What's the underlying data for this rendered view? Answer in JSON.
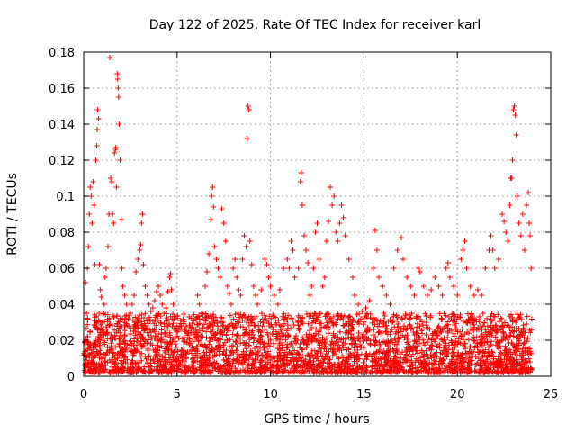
{
  "chart_data": {
    "type": "scatter",
    "title": "Day 122 of 2025, Rate Of TEC Index for receiver karl",
    "xlabel": "GPS time / hours",
    "ylabel": "ROTI / TECUs",
    "xlim": [
      0,
      25
    ],
    "ylim": [
      0,
      0.18
    ],
    "xticks": [
      0,
      5,
      10,
      15,
      20,
      25
    ],
    "xtick_labels": [
      "0",
      "5",
      "10",
      "15",
      "20",
      "25"
    ],
    "yticks": [
      0,
      0.02,
      0.04,
      0.06,
      0.08,
      0.1,
      0.12,
      0.14,
      0.16,
      0.18
    ],
    "ytick_labels": [
      "0",
      "0.02",
      "0.04",
      "0.06",
      "0.08",
      "0.1",
      "0.12",
      "0.14",
      "0.16",
      "0.18"
    ],
    "grid": true,
    "marker": "+",
    "color": "#ff0000",
    "series": [
      {
        "name": "ROTI",
        "points": [
          [
            0.1,
            0.052
          ],
          [
            0.15,
            0.035
          ],
          [
            0.2,
            0.06
          ],
          [
            0.25,
            0.072
          ],
          [
            0.3,
            0.09
          ],
          [
            0.35,
            0.105
          ],
          [
            0.4,
            0.1
          ],
          [
            0.45,
            0.085
          ],
          [
            0.5,
            0.108
          ],
          [
            0.55,
            0.095
          ],
          [
            0.6,
            0.062
          ],
          [
            0.65,
            0.12
          ],
          [
            0.7,
            0.128
          ],
          [
            0.72,
            0.137
          ],
          [
            0.75,
            0.148
          ],
          [
            0.8,
            0.143
          ],
          [
            0.85,
            0.062
          ],
          [
            0.9,
            0.048
          ],
          [
            0.95,
            0.044
          ],
          [
            1.0,
            0.03
          ],
          [
            1.05,
            0.026
          ],
          [
            1.1,
            0.04
          ],
          [
            1.15,
            0.055
          ],
          [
            1.2,
            0.06
          ],
          [
            1.3,
            0.072
          ],
          [
            1.35,
            0.09
          ],
          [
            1.4,
            0.177
          ],
          [
            1.45,
            0.11
          ],
          [
            1.5,
            0.108
          ],
          [
            1.55,
            0.09
          ],
          [
            1.6,
            0.085
          ],
          [
            1.65,
            0.124
          ],
          [
            1.7,
            0.126
          ],
          [
            1.72,
            0.127
          ],
          [
            1.75,
            0.105
          ],
          [
            1.8,
            0.168
          ],
          [
            1.82,
            0.165
          ],
          [
            1.85,
            0.16
          ],
          [
            1.87,
            0.155
          ],
          [
            1.9,
            0.14
          ],
          [
            1.95,
            0.12
          ],
          [
            2.0,
            0.087
          ],
          [
            2.05,
            0.06
          ],
          [
            2.1,
            0.05
          ],
          [
            2.2,
            0.045
          ],
          [
            2.3,
            0.04
          ],
          [
            2.4,
            0.032
          ],
          [
            2.5,
            0.035
          ],
          [
            2.6,
            0.04
          ],
          [
            2.7,
            0.045
          ],
          [
            2.8,
            0.058
          ],
          [
            2.9,
            0.065
          ],
          [
            3.0,
            0.07
          ],
          [
            3.05,
            0.073
          ],
          [
            3.1,
            0.085
          ],
          [
            3.15,
            0.09
          ],
          [
            3.2,
            0.062
          ],
          [
            3.3,
            0.05
          ],
          [
            3.4,
            0.045
          ],
          [
            3.5,
            0.04
          ],
          [
            3.6,
            0.036
          ],
          [
            3.7,
            0.038
          ],
          [
            3.8,
            0.042
          ],
          [
            3.9,
            0.047
          ],
          [
            4.0,
            0.05
          ],
          [
            4.1,
            0.045
          ],
          [
            4.2,
            0.04
          ],
          [
            4.3,
            0.035
          ],
          [
            4.4,
            0.038
          ],
          [
            4.5,
            0.047
          ],
          [
            4.6,
            0.055
          ],
          [
            4.65,
            0.057
          ],
          [
            4.7,
            0.048
          ],
          [
            4.8,
            0.04
          ],
          [
            4.9,
            0.032
          ],
          [
            5.0,
            0.028
          ],
          [
            5.2,
            0.026
          ],
          [
            5.4,
            0.025
          ],
          [
            5.6,
            0.024
          ],
          [
            5.8,
            0.027
          ],
          [
            6.0,
            0.026
          ],
          [
            6.1,
            0.045
          ],
          [
            6.2,
            0.04
          ],
          [
            6.3,
            0.035
          ],
          [
            6.4,
            0.032
          ],
          [
            6.5,
            0.05
          ],
          [
            6.6,
            0.058
          ],
          [
            6.7,
            0.068
          ],
          [
            6.8,
            0.087
          ],
          [
            6.85,
            0.1
          ],
          [
            6.9,
            0.105
          ],
          [
            6.95,
            0.094
          ],
          [
            7.0,
            0.072
          ],
          [
            7.1,
            0.065
          ],
          [
            7.2,
            0.06
          ],
          [
            7.3,
            0.055
          ],
          [
            7.4,
            0.093
          ],
          [
            7.5,
            0.085
          ],
          [
            7.6,
            0.075
          ],
          [
            7.7,
            0.05
          ],
          [
            7.8,
            0.046
          ],
          [
            7.9,
            0.04
          ],
          [
            8.0,
            0.06
          ],
          [
            8.1,
            0.065
          ],
          [
            8.2,
            0.055
          ],
          [
            8.3,
            0.048
          ],
          [
            8.4,
            0.045
          ],
          [
            8.5,
            0.065
          ],
          [
            8.6,
            0.078
          ],
          [
            8.7,
            0.072
          ],
          [
            8.75,
            0.132
          ],
          [
            8.8,
            0.15
          ],
          [
            8.85,
            0.148
          ],
          [
            8.9,
            0.075
          ],
          [
            9.0,
            0.062
          ],
          [
            9.1,
            0.05
          ],
          [
            9.2,
            0.045
          ],
          [
            9.3,
            0.04
          ],
          [
            9.5,
            0.048
          ],
          [
            9.7,
            0.065
          ],
          [
            9.8,
            0.062
          ],
          [
            9.9,
            0.055
          ],
          [
            10.0,
            0.05
          ],
          [
            10.2,
            0.045
          ],
          [
            10.4,
            0.04
          ],
          [
            10.5,
            0.048
          ],
          [
            10.7,
            0.06
          ],
          [
            10.9,
            0.065
          ],
          [
            11.0,
            0.06
          ],
          [
            11.1,
            0.075
          ],
          [
            11.2,
            0.07
          ],
          [
            11.3,
            0.055
          ],
          [
            11.5,
            0.06
          ],
          [
            11.6,
            0.108
          ],
          [
            11.65,
            0.113
          ],
          [
            11.7,
            0.095
          ],
          [
            11.8,
            0.078
          ],
          [
            11.9,
            0.07
          ],
          [
            12.0,
            0.063
          ],
          [
            12.1,
            0.045
          ],
          [
            12.2,
            0.05
          ],
          [
            12.3,
            0.06
          ],
          [
            12.4,
            0.08
          ],
          [
            12.5,
            0.085
          ],
          [
            12.6,
            0.065
          ],
          [
            12.8,
            0.05
          ],
          [
            12.9,
            0.055
          ],
          [
            13.0,
            0.075
          ],
          [
            13.1,
            0.086
          ],
          [
            13.2,
            0.105
          ],
          [
            13.3,
            0.095
          ],
          [
            13.4,
            0.1
          ],
          [
            13.5,
            0.08
          ],
          [
            13.6,
            0.075
          ],
          [
            13.7,
            0.085
          ],
          [
            13.8,
            0.095
          ],
          [
            13.9,
            0.088
          ],
          [
            14.0,
            0.078
          ],
          [
            14.2,
            0.065
          ],
          [
            14.4,
            0.055
          ],
          [
            14.5,
            0.045
          ],
          [
            14.7,
            0.04
          ],
          [
            14.9,
            0.036
          ],
          [
            15.1,
            0.038
          ],
          [
            15.3,
            0.042
          ],
          [
            15.5,
            0.06
          ],
          [
            15.6,
            0.081
          ],
          [
            15.7,
            0.07
          ],
          [
            15.8,
            0.055
          ],
          [
            16.0,
            0.05
          ],
          [
            16.2,
            0.045
          ],
          [
            16.4,
            0.04
          ],
          [
            16.6,
            0.06
          ],
          [
            16.8,
            0.07
          ],
          [
            17.0,
            0.077
          ],
          [
            17.1,
            0.065
          ],
          [
            17.3,
            0.055
          ],
          [
            17.5,
            0.05
          ],
          [
            17.7,
            0.045
          ],
          [
            17.9,
            0.06
          ],
          [
            18.0,
            0.058
          ],
          [
            18.2,
            0.05
          ],
          [
            18.4,
            0.045
          ],
          [
            18.6,
            0.048
          ],
          [
            18.8,
            0.055
          ],
          [
            19.0,
            0.05
          ],
          [
            19.2,
            0.045
          ],
          [
            19.4,
            0.06
          ],
          [
            19.5,
            0.063
          ],
          [
            19.6,
            0.055
          ],
          [
            19.8,
            0.05
          ],
          [
            20.0,
            0.045
          ],
          [
            20.2,
            0.065
          ],
          [
            20.3,
            0.07
          ],
          [
            20.4,
            0.075
          ],
          [
            20.5,
            0.06
          ],
          [
            20.7,
            0.05
          ],
          [
            20.9,
            0.045
          ],
          [
            21.1,
            0.048
          ],
          [
            21.3,
            0.045
          ],
          [
            21.5,
            0.06
          ],
          [
            21.7,
            0.07
          ],
          [
            21.8,
            0.078
          ],
          [
            21.9,
            0.07
          ],
          [
            22.0,
            0.06
          ],
          [
            22.2,
            0.065
          ],
          [
            22.4,
            0.09
          ],
          [
            22.5,
            0.086
          ],
          [
            22.6,
            0.08
          ],
          [
            22.7,
            0.075
          ],
          [
            22.8,
            0.095
          ],
          [
            22.85,
            0.11
          ],
          [
            22.9,
            0.11
          ],
          [
            22.95,
            0.12
          ],
          [
            23.0,
            0.148
          ],
          [
            23.05,
            0.15
          ],
          [
            23.1,
            0.145
          ],
          [
            23.15,
            0.134
          ],
          [
            23.2,
            0.1
          ],
          [
            23.3,
            0.085
          ],
          [
            23.4,
            0.078
          ],
          [
            23.5,
            0.09
          ],
          [
            23.6,
            0.07
          ],
          [
            23.7,
            0.095
          ],
          [
            23.8,
            0.102
          ],
          [
            23.85,
            0.085
          ],
          [
            23.9,
            0.078
          ],
          [
            23.95,
            0.06
          ]
        ]
      }
    ],
    "background_band": {
      "description": "dense cloud of ROTI samples between 0 and ~0.035 TECU/s across the full day",
      "x_range": [
        0,
        24
      ],
      "y_range": [
        0.002,
        0.035
      ]
    }
  }
}
